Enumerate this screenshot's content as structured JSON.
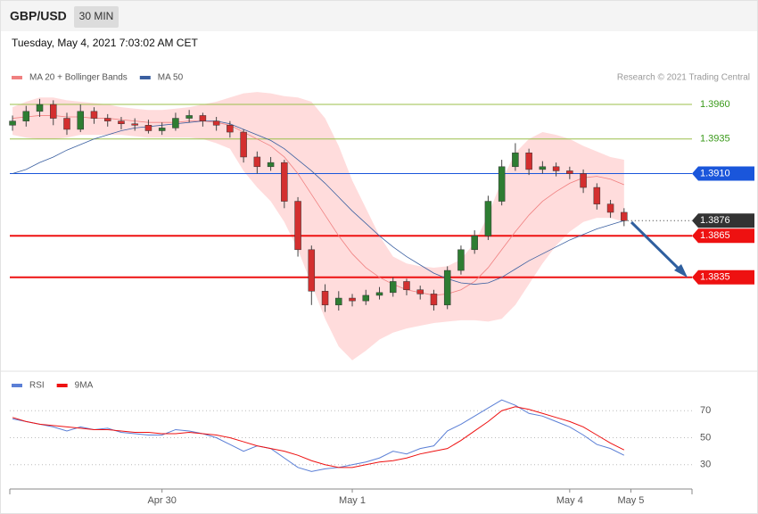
{
  "header": {
    "symbol": "GBP/USD",
    "timeframe": "30 MIN",
    "date": "Tuesday, May 4, 2021 7:03:02 AM CET",
    "source": "Research © 2021 Trading Central"
  },
  "chart_data": [
    {
      "type": "candlestick",
      "x": [
        0,
        1,
        2,
        3,
        4,
        5,
        6,
        7,
        8,
        9,
        10,
        11,
        12,
        13,
        14,
        15,
        16,
        17,
        18,
        19,
        20,
        21,
        22,
        23,
        24,
        25,
        26,
        27,
        28,
        29,
        30,
        31,
        32,
        33,
        34,
        35,
        36,
        37,
        38,
        39,
        40,
        41,
        42,
        43,
        44,
        45
      ],
      "open": [
        1.3945,
        1.3948,
        1.3955,
        1.396,
        1.395,
        1.3942,
        1.3955,
        1.395,
        1.3948,
        1.3946,
        1.3945,
        1.3941,
        1.3943,
        1.395,
        1.3952,
        1.3948,
        1.3945,
        1.394,
        1.3922,
        1.3915,
        1.3918,
        1.389,
        1.3855,
        1.3825,
        1.3815,
        1.382,
        1.3818,
        1.3822,
        1.3824,
        1.3832,
        1.3826,
        1.3823,
        1.3815,
        1.384,
        1.3855,
        1.3865,
        1.389,
        1.3915,
        1.3925,
        1.3913,
        1.3915,
        1.3912,
        1.391,
        1.39,
        1.3888,
        1.3882
      ],
      "high": [
        1.3952,
        1.3959,
        1.3964,
        1.3963,
        1.3954,
        1.396,
        1.3958,
        1.3953,
        1.3951,
        1.395,
        1.3949,
        1.3947,
        1.3954,
        1.3956,
        1.3954,
        1.3951,
        1.3948,
        1.3942,
        1.3926,
        1.3922,
        1.392,
        1.3893,
        1.3858,
        1.383,
        1.3825,
        1.3823,
        1.3826,
        1.3828,
        1.3835,
        1.3834,
        1.3829,
        1.3826,
        1.3843,
        1.3858,
        1.3869,
        1.3894,
        1.392,
        1.3932,
        1.3928,
        1.3919,
        1.3918,
        1.3915,
        1.3913,
        1.3903,
        1.3891,
        1.3885
      ],
      "low": [
        1.3941,
        1.3944,
        1.3951,
        1.3945,
        1.3938,
        1.394,
        1.3946,
        1.3944,
        1.3942,
        1.3941,
        1.3939,
        1.3938,
        1.3941,
        1.3947,
        1.3944,
        1.3941,
        1.3936,
        1.3918,
        1.391,
        1.3912,
        1.3885,
        1.385,
        1.3815,
        1.381,
        1.3811,
        1.3814,
        1.3815,
        1.3819,
        1.3821,
        1.3822,
        1.3819,
        1.3811,
        1.3812,
        1.3837,
        1.3852,
        1.3862,
        1.3887,
        1.3912,
        1.3909,
        1.391,
        1.3908,
        1.3906,
        1.3896,
        1.3884,
        1.3878,
        1.3872
      ],
      "close": [
        1.3948,
        1.3955,
        1.396,
        1.395,
        1.3942,
        1.3955,
        1.395,
        1.3948,
        1.3946,
        1.3945,
        1.3941,
        1.3943,
        1.395,
        1.3952,
        1.3948,
        1.3945,
        1.394,
        1.3922,
        1.3915,
        1.3918,
        1.389,
        1.3855,
        1.3825,
        1.3815,
        1.382,
        1.3818,
        1.3822,
        1.3824,
        1.3832,
        1.3826,
        1.3823,
        1.3815,
        1.384,
        1.3855,
        1.3865,
        1.389,
        1.3915,
        1.3925,
        1.3913,
        1.3915,
        1.3912,
        1.391,
        1.39,
        1.3888,
        1.3882,
        1.3876
      ],
      "up_color": "#2e7d32",
      "down_color": "#d32f2f",
      "series": [
        {
          "name": "MA 20 + Bollinger Bands",
          "color": "#f08080",
          "band_color": "#ffdcdc",
          "values": [
            1.395,
            1.3951,
            1.3952,
            1.3952,
            1.3951,
            1.3951,
            1.395,
            1.395,
            1.3949,
            1.3948,
            1.3947,
            1.3947,
            1.3947,
            1.3948,
            1.3948,
            1.3947,
            1.3945,
            1.394,
            1.3935,
            1.393,
            1.3922,
            1.391,
            1.3895,
            1.388,
            1.3865,
            1.3852,
            1.3842,
            1.3835,
            1.383,
            1.3826,
            1.3824,
            1.3822,
            1.3823,
            1.3826,
            1.3832,
            1.3842,
            1.3855,
            1.3868,
            1.388,
            1.389,
            1.3897,
            1.3903,
            1.3907,
            1.3908,
            1.3906,
            1.3902
          ],
          "upper": [
            1.3958,
            1.3962,
            1.3965,
            1.3965,
            1.3963,
            1.3962,
            1.3961,
            1.396,
            1.3958,
            1.3957,
            1.3956,
            1.3956,
            1.3957,
            1.3958,
            1.396,
            1.3962,
            1.3965,
            1.3968,
            1.3969,
            1.3968,
            1.3966,
            1.3965,
            1.3962,
            1.395,
            1.393,
            1.3905,
            1.3885,
            1.3865,
            1.385,
            1.3845,
            1.3843,
            1.3842,
            1.3843,
            1.3848,
            1.386,
            1.388,
            1.3905,
            1.3925,
            1.3935,
            1.394,
            1.3938,
            1.3935,
            1.393,
            1.3926,
            1.3922,
            1.392
          ],
          "lower": [
            1.3938,
            1.3936,
            1.3935,
            1.3935,
            1.3936,
            1.3938,
            1.3938,
            1.3938,
            1.3938,
            1.3937,
            1.3936,
            1.3936,
            1.3936,
            1.3936,
            1.3935,
            1.3932,
            1.3928,
            1.3912,
            1.39,
            1.389,
            1.3875,
            1.3855,
            1.383,
            1.3805,
            1.3785,
            1.3775,
            1.3782,
            1.379,
            1.3795,
            1.3798,
            1.38,
            1.3802,
            1.3803,
            1.3804,
            1.3804,
            1.3803,
            1.3805,
            1.3815,
            1.383,
            1.3845,
            1.3858,
            1.3868,
            1.3875,
            1.3878,
            1.3878,
            1.3875
          ]
        },
        {
          "name": "MA 50",
          "color": "#3a5fa0",
          "values": [
            1.391,
            1.3913,
            1.3918,
            1.3922,
            1.3927,
            1.3931,
            1.3935,
            1.3938,
            1.3941,
            1.3943,
            1.3944,
            1.3945,
            1.3946,
            1.3947,
            1.3948,
            1.3948,
            1.3946,
            1.3942,
            1.3938,
            1.3934,
            1.3928,
            1.392,
            1.3912,
            1.3903,
            1.3893,
            1.3883,
            1.3874,
            1.3865,
            1.3857,
            1.385,
            1.3844,
            1.3838,
            1.3834,
            1.3831,
            1.383,
            1.3831,
            1.3835,
            1.3841,
            1.3847,
            1.3852,
            1.3857,
            1.3862,
            1.3866,
            1.387,
            1.3873,
            1.3876
          ]
        }
      ],
      "levels": [
        {
          "value": 1.396,
          "label": "1.3960",
          "color": "#9bbf4a"
        },
        {
          "value": 1.3935,
          "label": "1.3935",
          "color": "#9bbf4a"
        },
        {
          "value": 1.391,
          "label": "1.3910",
          "color": "#1a56db"
        },
        {
          "value": 1.3876,
          "label": "1.3876",
          "color": "#333333",
          "style": "dotted"
        },
        {
          "value": 1.3865,
          "label": "1.3865",
          "color": "#ee1111"
        },
        {
          "value": 1.3835,
          "label": "1.3835",
          "color": "#ee1111"
        }
      ],
      "xlim": [
        -0.2,
        50
      ],
      "ylim": [
        1.3771,
        1.3971
      ]
    },
    {
      "type": "line",
      "x": [
        0,
        1,
        2,
        3,
        4,
        5,
        6,
        7,
        8,
        9,
        10,
        11,
        12,
        13,
        14,
        15,
        16,
        17,
        18,
        19,
        20,
        21,
        22,
        23,
        24,
        25,
        26,
        27,
        28,
        29,
        30,
        31,
        32,
        33,
        34,
        35,
        36,
        37,
        38,
        39,
        40,
        41,
        42,
        43,
        44,
        45
      ],
      "series": [
        {
          "name": "RSI",
          "color": "#5b7fd6",
          "values": [
            64,
            62,
            60,
            58,
            55,
            58,
            56,
            57,
            54,
            53,
            52,
            52,
            56,
            55,
            53,
            50,
            45,
            40,
            44,
            42,
            35,
            28,
            25,
            27,
            28,
            30,
            32,
            35,
            40,
            38,
            42,
            44,
            55,
            60,
            66,
            72,
            78,
            74,
            68,
            66,
            62,
            58,
            52,
            45,
            42,
            37
          ]
        },
        {
          "name": "9MA",
          "color": "#ee1111",
          "values": [
            65,
            62,
            60,
            59,
            58,
            57,
            56,
            56,
            55,
            54,
            54,
            53,
            53,
            54,
            53,
            52,
            50,
            47,
            44,
            42,
            40,
            37,
            33,
            30,
            28,
            28,
            30,
            32,
            33,
            35,
            38,
            40,
            42,
            48,
            55,
            62,
            70,
            73,
            71,
            68,
            65,
            62,
            58,
            52,
            46,
            41
          ]
        }
      ],
      "xlim": [
        -0.2,
        50
      ],
      "ylim": [
        14,
        90
      ],
      "yticks": [
        30,
        50,
        70
      ],
      "grid": true,
      "xticks": [
        {
          "value": 11,
          "label": "Apr 30"
        },
        {
          "value": 25,
          "label": "May 1"
        },
        {
          "value": 41,
          "label": "May 4"
        },
        {
          "value": 45.5,
          "label": "May 5"
        }
      ]
    }
  ]
}
